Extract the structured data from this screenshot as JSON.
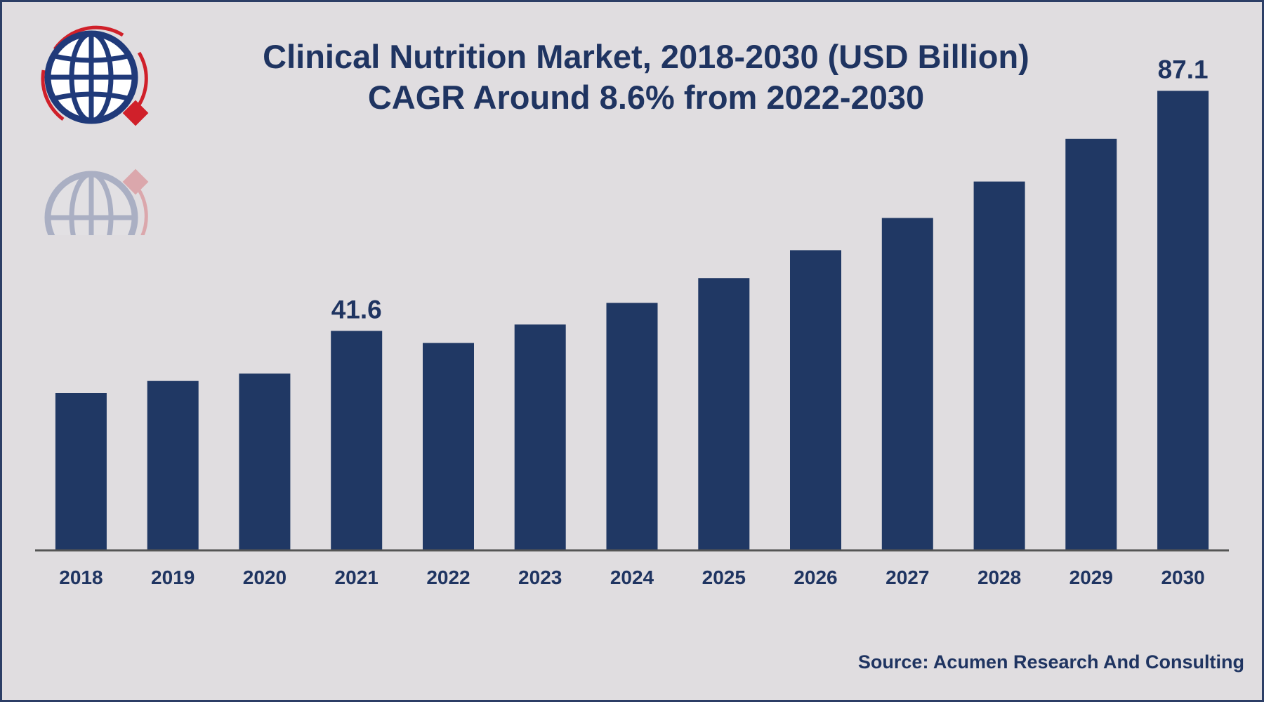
{
  "header": {
    "title": "Clinical Nutrition Market, 2018-2030 (USD Billion)",
    "subtitle": "CAGR Around 8.6% from 2022-2030"
  },
  "source_text": "Source: Acumen Research And Consulting",
  "colors": {
    "bar": "#203864",
    "text": "#1f3461",
    "axis": "#555555",
    "background": "#e0dde0",
    "logo_red": "#d0202a"
  },
  "logo": {
    "icon": "globe-icon"
  },
  "chart_data": {
    "type": "bar",
    "title": "Clinical Nutrition Market, 2018-2030 (USD Billion)",
    "subtitle": "CAGR Around 8.6% from 2022-2030",
    "xlabel": "",
    "ylabel": "",
    "categories": [
      "2018",
      "2019",
      "2020",
      "2021",
      "2022",
      "2023",
      "2024",
      "2025",
      "2026",
      "2027",
      "2028",
      "2029",
      "2030"
    ],
    "values": [
      29.8,
      32.1,
      33.5,
      41.6,
      39.3,
      42.8,
      46.9,
      51.6,
      56.9,
      63.0,
      69.9,
      78.0,
      87.1
    ],
    "data_labels": [
      {
        "index": 3,
        "text": "41.6"
      },
      {
        "index": 12,
        "text": "87.1"
      }
    ],
    "ylim": [
      0,
      95
    ],
    "grid": false,
    "legend": "none"
  }
}
